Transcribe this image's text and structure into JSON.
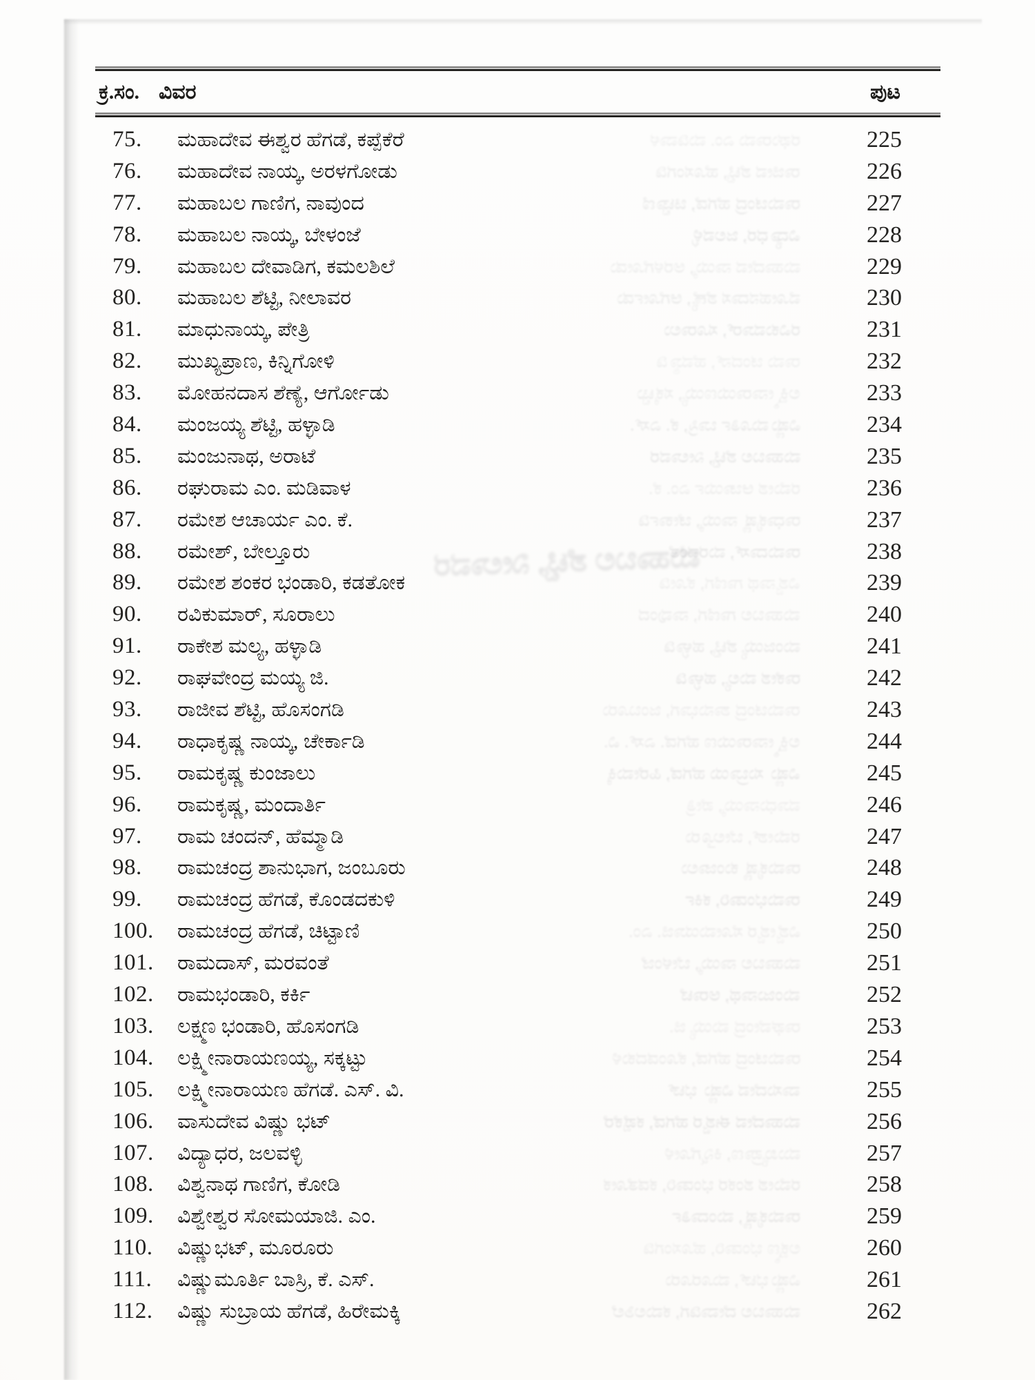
{
  "header": {
    "col_serial": "ಕ್ರ.ಸಂ.",
    "col_detail": "ವಿವರ",
    "col_page": "ಪುಟ"
  },
  "entries": [
    {
      "no": "75.",
      "name": "ಮಹಾದೇವ ಈಶ್ವರ ಹೆಗಡೆ, ಕಪ್ಪೆಕೆರೆ",
      "page": "225"
    },
    {
      "no": "76.",
      "name": "ಮಹಾದೇವ ನಾಯ್ಕ, ಅರಳಗೋಡು",
      "page": "226"
    },
    {
      "no": "77.",
      "name": "ಮಹಾಬಲ ಗಾಣಿಗ, ನಾವುಂದ",
      "page": "227"
    },
    {
      "no": "78.",
      "name": "ಮಹಾಬಲ ನಾಯ್ಕ, ಬೇಳಂಜೆ",
      "page": "228"
    },
    {
      "no": "79.",
      "name": "ಮಹಾಬಲ ದೇವಾಡಿಗ, ಕಮಲಶಿಲೆ",
      "page": "229"
    },
    {
      "no": "80.",
      "name": "ಮಹಾಬಲ ಶೆಟ್ಟಿ, ನೀಲಾವರ",
      "page": "230"
    },
    {
      "no": "81.",
      "name": "ಮಾಧುನಾಯ್ಕ, ಪೇತ್ರಿ",
      "page": "231"
    },
    {
      "no": "82.",
      "name": "ಮುಖ್ಯಪ್ರಾಣ, ಕಿನ್ನಿಗೋಳಿ",
      "page": "232"
    },
    {
      "no": "83.",
      "name": "ಮೋಹನದಾಸ ಶೆಣ್ಯೆ, ಆರ್ಗೋಡು",
      "page": "233"
    },
    {
      "no": "84.",
      "name": "ಮಂಜಯ್ಯ ಶೆಟ್ಟಿ, ಹಳ್ಳಾಡಿ",
      "page": "234"
    },
    {
      "no": "85.",
      "name": "ಮಂಜುನಾಥ, ಅರಾಟೆ",
      "page": "235"
    },
    {
      "no": "86.",
      "name": "ರಘುರಾಮ ಎಂ. ಮಡಿವಾಳ",
      "page": "236"
    },
    {
      "no": "87.",
      "name": "ರಮೇಶ ಆಚಾರ್ಯ ಎಂ. ಕೆ.",
      "page": "237"
    },
    {
      "no": "88.",
      "name": "ರಮೇಶ್, ಬೇಲ್ತೂರು",
      "page": "238"
    },
    {
      "no": "89.",
      "name": "ರಮೇಶ ಶಂಕರ ಭಂಡಾರಿ, ಕಡತೋಕ",
      "page": "239"
    },
    {
      "no": "90.",
      "name": "ರವಿಕುಮಾರ್, ಸೂರಾಲು",
      "page": "240"
    },
    {
      "no": "91.",
      "name": "ರಾಕೇಶ ಮಲ್ಯ, ಹಳ್ಳಾಡಿ",
      "page": "241"
    },
    {
      "no": "92.",
      "name": "ರಾಘವೇಂದ್ರ ಮಯ್ಯ ಜಿ.",
      "page": "242"
    },
    {
      "no": "93.",
      "name": "ರಾಜೀವ ಶೆಟ್ಟಿ, ಹೊಸಂಗಡಿ",
      "page": "243"
    },
    {
      "no": "94.",
      "name": "ರಾಧಾಕೃಷ್ಣ ನಾಯ್ಕ, ಚೇರ್ಕಾಡಿ",
      "page": "244"
    },
    {
      "no": "95.",
      "name": "ರಾಮಕೃಷ್ಣ ಕುಂಜಾಲು",
      "page": "245"
    },
    {
      "no": "96.",
      "name": "ರಾಮಕೃಷ್ಣ, ಮಂದಾರ್ತಿ",
      "page": "246"
    },
    {
      "no": "97.",
      "name": "ರಾಮ ಚಂದನ್, ಹೆಮ್ಮಾಡಿ",
      "page": "247"
    },
    {
      "no": "98.",
      "name": "ರಾಮಚಂದ್ರ ಶಾನುಭಾಗ, ಜಂಬೂರು",
      "page": "248"
    },
    {
      "no": "99.",
      "name": "ರಾಮಚಂದ್ರ ಹೆಗಡೆ, ಕೊಂಡದಕುಳಿ",
      "page": "249"
    },
    {
      "no": "100.",
      "name": "ರಾಮಚಂದ್ರ ಹೆಗಡೆ, ಚಿಟ್ಟಾಣಿ",
      "page": "250"
    },
    {
      "no": "101.",
      "name": "ರಾಮದಾಸ್, ಮರವಂತೆ",
      "page": "251"
    },
    {
      "no": "102.",
      "name": "ರಾಮಭಂಡಾರಿ, ಕರ್ಕಿ",
      "page": "252"
    },
    {
      "no": "103.",
      "name": "ಲಕ್ಷ್ಮಣ ಭಂಡಾರಿ, ಹೊಸಂಗಡಿ",
      "page": "253"
    },
    {
      "no": "104.",
      "name": "ಲಕ್ಷ್ಮೀನಾರಾಯಣಯ್ಯ, ಸಕ್ಕಟ್ಟು",
      "page": "254"
    },
    {
      "no": "105.",
      "name": "ಲಕ್ಷ್ಮೀನಾರಾಯಣ ಹೆಗಡೆ. ಎಸ್. ವಿ.",
      "page": "255"
    },
    {
      "no": "106.",
      "name": "ವಾಸುದೇವ ವಿಷ್ಣು ಭಟ್",
      "page": "256"
    },
    {
      "no": "107.",
      "name": "ವಿದ್ಯಾಧರ, ಜಲವಳ್ಳಿ",
      "page": "257"
    },
    {
      "no": "108.",
      "name": "ವಿಶ್ವನಾಥ ಗಾಣಿಗ, ಕೋಡಿ",
      "page": "258"
    },
    {
      "no": "109.",
      "name": "ವಿಶ್ವೇಶ್ವರ ಸೋಮಯಾಜಿ. ಎಂ.",
      "page": "259"
    },
    {
      "no": "110.",
      "name": "ವಿಷ್ಣುಭಟ್, ಮೂರೂರು",
      "page": "260"
    },
    {
      "no": "111.",
      "name": "ವಿಷ್ಣುಮೂರ್ತಿ ಬಾಸ್ರಿ, ಕೆ. ಎಸ್.",
      "page": "261"
    },
    {
      "no": "112.",
      "name": "ವಿಷ್ಣು ಸುಬ್ರಾಯ ಹೆಗಡೆ, ಹಿರೇಮಕ್ಕಿ",
      "page": "262"
    }
  ],
  "colors": {
    "ink": "#1d1c1a",
    "rule": "#232220",
    "paper": "#fdfdfc"
  }
}
